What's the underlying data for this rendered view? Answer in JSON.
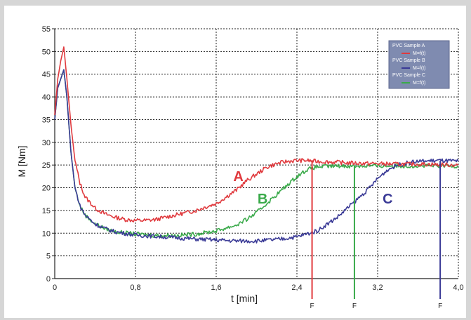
{
  "chart_data": {
    "type": "line",
    "xlabel": "t [min]",
    "ylabel": "M [Nm]",
    "xlim": [
      0,
      4.0
    ],
    "ylim": [
      0,
      55
    ],
    "x_ticks": [
      0,
      0.8,
      1.6,
      2.4,
      3.2,
      4.0
    ],
    "x_tick_labels": [
      "0",
      "0,8",
      "1,6",
      "2,4",
      "3,2",
      "4,0"
    ],
    "y_ticks": [
      0,
      5,
      10,
      15,
      20,
      25,
      30,
      35,
      40,
      45,
      50,
      55
    ],
    "y_tick_labels": [
      "0",
      "5",
      "10",
      "15",
      "20",
      "25",
      "30",
      "35",
      "40",
      "45",
      "50",
      "55"
    ],
    "grid": true,
    "legend_position": "top-right",
    "series": [
      {
        "name": "PVC Sample A",
        "legend_entry": "M=f(t)",
        "color": "#e03a3e",
        "curve_label": "A",
        "x": [
          0,
          0.03,
          0.06,
          0.09,
          0.12,
          0.16,
          0.2,
          0.25,
          0.3,
          0.4,
          0.5,
          0.6,
          0.7,
          0.8,
          0.9,
          1.0,
          1.1,
          1.2,
          1.3,
          1.4,
          1.5,
          1.6,
          1.7,
          1.8,
          1.9,
          2.0,
          2.1,
          2.2,
          2.3,
          2.4,
          2.5,
          2.6,
          2.8,
          3.0,
          3.2,
          3.4,
          3.6,
          3.8,
          4.0
        ],
        "values": [
          36,
          44,
          48,
          51,
          44,
          34,
          26,
          21,
          18,
          15.5,
          14.2,
          13.5,
          13.0,
          12.8,
          12.8,
          13.0,
          13.5,
          14.0,
          14.5,
          15.0,
          15.8,
          16.5,
          18.0,
          19.5,
          21.5,
          23.0,
          24.5,
          25.3,
          25.8,
          26.0,
          26.0,
          25.8,
          25.6,
          25.4,
          25.3,
          25.2,
          25.2,
          25.1,
          25.0
        ]
      },
      {
        "name": "PVC Sample B",
        "legend_entry": "M=f(t)",
        "color": "#3a3a96",
        "curve_label": "C",
        "x": [
          0,
          0.03,
          0.06,
          0.09,
          0.12,
          0.16,
          0.2,
          0.25,
          0.3,
          0.4,
          0.5,
          0.6,
          0.8,
          1.0,
          1.2,
          1.4,
          1.6,
          1.8,
          2.0,
          2.2,
          2.4,
          2.6,
          2.7,
          2.8,
          2.9,
          3.0,
          3.1,
          3.2,
          3.3,
          3.4,
          3.5,
          3.6,
          3.8,
          4.0
        ],
        "values": [
          35,
          42,
          44,
          46,
          40,
          28,
          20,
          16,
          14,
          12.0,
          11.0,
          10.3,
          9.6,
          9.3,
          9.0,
          8.7,
          8.5,
          8.3,
          8.3,
          8.6,
          9.2,
          10.5,
          12.0,
          13.5,
          15.5,
          17.5,
          19.5,
          22.0,
          24.0,
          25.0,
          25.5,
          25.8,
          26.0,
          25.8
        ]
      },
      {
        "name": "PVC Sample C",
        "legend_entry": "M=f(t)",
        "color": "#3aaa4a",
        "curve_label": "B",
        "x": [
          0,
          0.03,
          0.06,
          0.09,
          0.12,
          0.16,
          0.2,
          0.25,
          0.3,
          0.4,
          0.5,
          0.6,
          0.8,
          1.0,
          1.2,
          1.4,
          1.6,
          1.8,
          1.9,
          2.0,
          2.1,
          2.2,
          2.3,
          2.4,
          2.5,
          2.6,
          2.8,
          3.0,
          3.2,
          3.4,
          3.6,
          3.8,
          4.0
        ],
        "values": [
          35,
          42,
          44,
          46,
          40,
          28,
          20,
          16,
          14,
          12.0,
          11.0,
          10.3,
          9.8,
          9.5,
          9.5,
          9.8,
          10.5,
          11.8,
          13.0,
          14.5,
          16.5,
          18.5,
          20.5,
          22.5,
          24.0,
          24.6,
          24.8,
          24.8,
          24.8,
          24.8,
          24.8,
          24.8,
          24.8
        ]
      }
    ],
    "markers": [
      {
        "x": 2.55,
        "label": "F",
        "color": "#e03a3e"
      },
      {
        "x": 2.97,
        "label": "F",
        "color": "#3aaa4a"
      },
      {
        "x": 3.82,
        "label": "F",
        "color": "#3a3a96"
      }
    ],
    "annotations": [
      {
        "text": "A",
        "x": 1.82,
        "y": 21.5,
        "color": "#e03a3e"
      },
      {
        "text": "B",
        "x": 2.06,
        "y": 16.5,
        "color": "#3aaa4a"
      },
      {
        "text": "C",
        "x": 3.3,
        "y": 16.5,
        "color": "#3a3a96"
      }
    ],
    "legend": {
      "background": "#7f8bb0",
      "entries": [
        "PVC Sample A",
        "M=f(t)",
        "PVC Sample B",
        "M=f(t)",
        "PVC Sample C",
        "M=f(t)"
      ]
    }
  }
}
